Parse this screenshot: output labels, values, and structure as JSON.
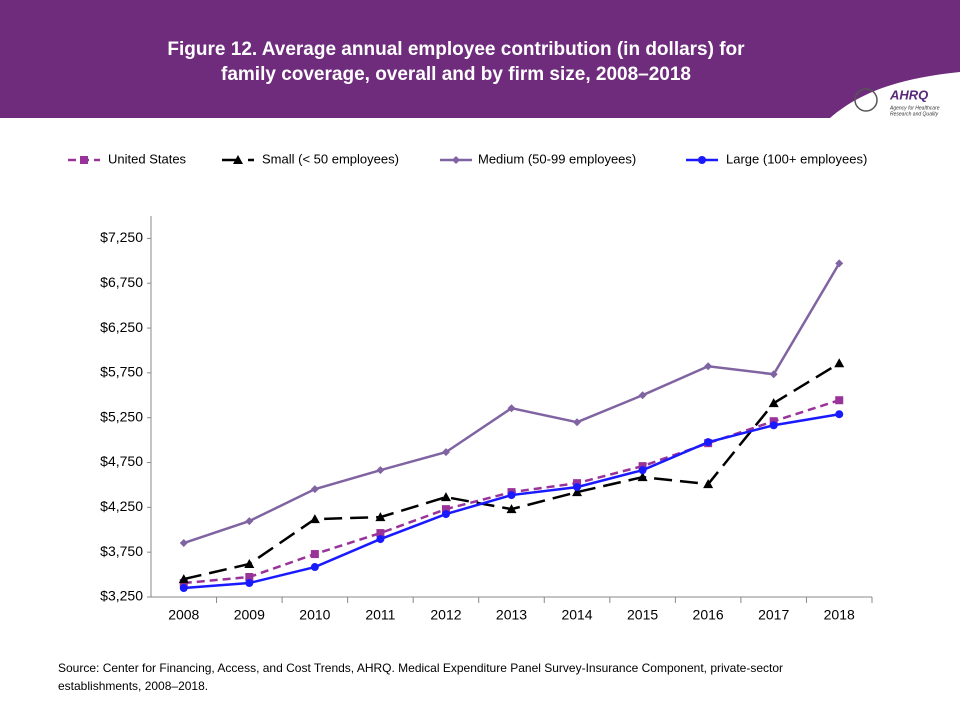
{
  "header": {
    "title_lines": [
      "Figure 12. Average annual employee contribution (in dollars) for",
      "family coverage, overall and by firm size, 2008–2018"
    ],
    "logo": {
      "name": "AHRQ",
      "lines": [
        "Agency for Healthcare",
        "Research and Quality"
      ]
    }
  },
  "chart_data": {
    "type": "line",
    "categories": [
      "2008",
      "2009",
      "2010",
      "2011",
      "2012",
      "2013",
      "2014",
      "2015",
      "2016",
      "2017",
      "2018"
    ],
    "series": [
      {
        "name": "United States",
        "color": "#993399",
        "dash": "dashed",
        "marker": "square",
        "values": [
          3406,
          3473,
          3729,
          3963,
          4230,
          4420,
          4520,
          4710,
          4966,
          5211,
          5445
        ]
      },
      {
        "name": "Small (< 50 employees)",
        "color": "#000000",
        "dash": "long-dashed",
        "marker": "triangle",
        "values": [
          3450,
          3618,
          4119,
          4141,
          4364,
          4230,
          4420,
          4587,
          4509,
          5412,
          5857
        ]
      },
      {
        "name": "Medium (50-99 employees)",
        "color": "#8064a2",
        "dash": "solid",
        "marker": "diamond",
        "values": [
          3852,
          4097,
          4453,
          4665,
          4866,
          5356,
          5200,
          5501,
          5824,
          5735,
          6971
        ]
      },
      {
        "name": "Large (100+ employees)",
        "color": "#1a1aff",
        "dash": "solid",
        "marker": "circle",
        "values": [
          3350,
          3406,
          3584,
          3896,
          4175,
          4387,
          4476,
          4665,
          4977,
          5166,
          5289
        ]
      }
    ],
    "ylim": [
      3250,
      7500
    ],
    "yticks": [
      {
        "value": 3250,
        "label": "$3,250"
      },
      {
        "value": 3750,
        "label": "$3,750"
      },
      {
        "value": 4250,
        "label": "$4,250"
      },
      {
        "value": 4750,
        "label": "$4,750"
      },
      {
        "value": 5250,
        "label": "$5,250"
      },
      {
        "value": 5750,
        "label": "$5,750"
      },
      {
        "value": 6250,
        "label": "$6,250"
      },
      {
        "value": 6750,
        "label": "$6,750"
      },
      {
        "value": 7250,
        "label": "$7,250"
      }
    ],
    "grid": false,
    "legend": "top"
  },
  "source": [
    "Source: Center for Financing, Access, and Cost Trends, AHRQ. Medical Expenditure Panel Survey-Insurance  Component, private-sector",
    "establishments, 2008–2018."
  ]
}
